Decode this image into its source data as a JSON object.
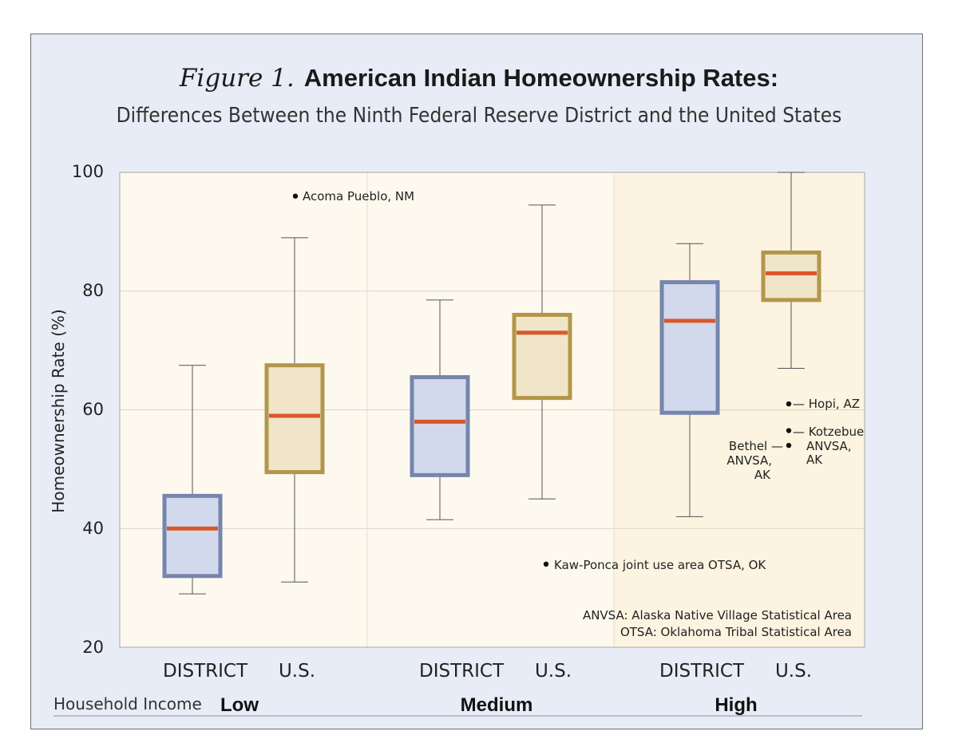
{
  "figure_label": "Figure 1.",
  "title": "American Indian Homeownership Rates:",
  "subtitle": "Differences Between the Ninth Federal Reserve District and the United States",
  "colors": {
    "district_box_stroke": "#7585ad",
    "district_box_fill": "#d3d9ec",
    "us_box_stroke": "#b3964a",
    "us_box_fill": "#f1e5c9",
    "median": "#d9582b",
    "plot_bg_light": "#fdf9ef",
    "plot_bg_dark": "#fcf4e0",
    "frame_bg": "#e8ecf6"
  },
  "chart_data": {
    "type": "box",
    "ylabel": "Homeownership Rate (%)",
    "ylim": [
      20,
      100
    ],
    "yticks": [
      "100",
      "80",
      "60",
      "40",
      "20"
    ],
    "grid": true,
    "x_group_title": "Household Income",
    "groups": [
      {
        "name": "Low",
        "boxes": [
          {
            "label": "DISTRICT",
            "kind": "district",
            "min": 29,
            "q1": 32,
            "median": 40,
            "q3": 45.5,
            "max": 67.5
          },
          {
            "label": "U.S.",
            "kind": "us",
            "min": 31,
            "q1": 49.5,
            "median": 59,
            "q3": 67.5,
            "max": 89
          }
        ]
      },
      {
        "name": "Medium",
        "boxes": [
          {
            "label": "DISTRICT",
            "kind": "district",
            "min": 41.5,
            "q1": 49,
            "median": 58,
            "q3": 65.5,
            "max": 78.5
          },
          {
            "label": "U.S.",
            "kind": "us",
            "min": 45,
            "q1": 62,
            "median": 73,
            "q3": 76,
            "max": 94.5
          }
        ]
      },
      {
        "name": "High",
        "boxes": [
          {
            "label": "DISTRICT",
            "kind": "district",
            "min": 42,
            "q1": 59.5,
            "median": 75,
            "q3": 81.5,
            "max": 88
          },
          {
            "label": "U.S.",
            "kind": "us",
            "min": 67,
            "q1": 78.5,
            "median": 83,
            "q3": 86.5,
            "max": 100
          }
        ]
      }
    ],
    "outliers": [
      {
        "group": 0,
        "box": 1,
        "y": 96,
        "label": "Acoma Pueblo, NM"
      },
      {
        "group": 1,
        "box": 1,
        "y": 34,
        "label": "Kaw-Ponca joint use area OTSA, OK"
      },
      {
        "group": 2,
        "box": 1,
        "y": 61,
        "label": "Hopi, AZ"
      },
      {
        "group": 2,
        "box": 1,
        "y": 56.5,
        "label": "Kotzebue ANVSA, AK"
      },
      {
        "group": 2,
        "box": 1,
        "y": 54,
        "label": "Bethel ANVSA, AK"
      }
    ],
    "notes": [
      "ANVSA: Alaska Native Village Statistical Area",
      "OTSA: Oklahoma Tribal Statistical Area"
    ]
  }
}
